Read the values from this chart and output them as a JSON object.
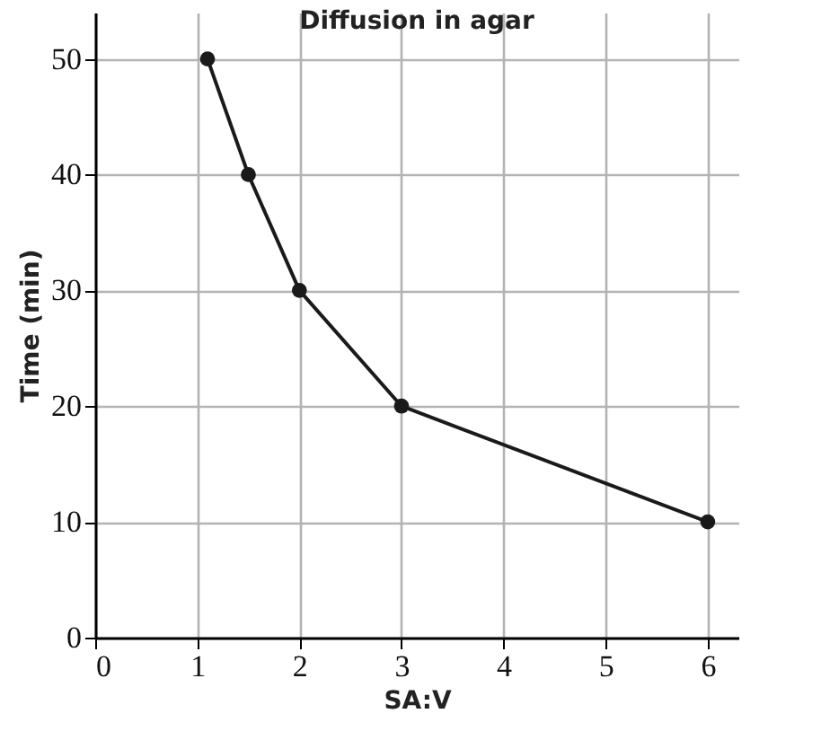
{
  "chart_data": {
    "type": "line",
    "title": "Diffusion in agar",
    "xlabel": "SA:V",
    "ylabel": "Time (min)",
    "x": [
      1.1,
      1.5,
      2,
      3,
      6
    ],
    "series": [
      {
        "color": "#1a1a1a",
        "values": [
          50,
          40,
          30,
          20,
          10
        ]
      }
    ],
    "xlim": [
      0,
      6.3
    ],
    "ylim": [
      0,
      54
    ],
    "xticks": [
      0,
      1,
      2,
      3,
      4,
      5,
      6
    ],
    "yticks": [
      0,
      10,
      20,
      30,
      40,
      50
    ],
    "grid": true,
    "marker": "circle",
    "line_style": "solid"
  }
}
